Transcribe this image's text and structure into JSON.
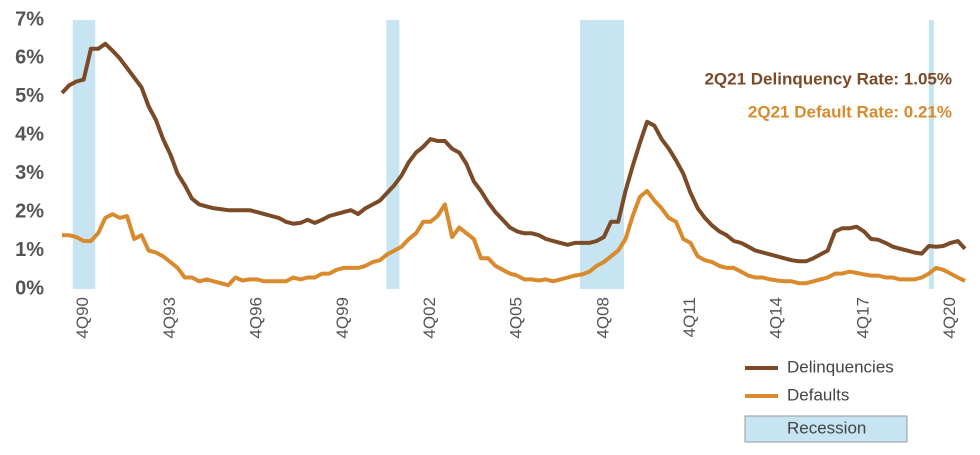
{
  "chart_data": {
    "type": "line",
    "categories": [
      null,
      null,
      null,
      "4Q90",
      null,
      null,
      null,
      null,
      null,
      null,
      null,
      null,
      null,
      null,
      null,
      "4Q93",
      null,
      null,
      null,
      null,
      null,
      null,
      null,
      null,
      null,
      null,
      null,
      "4Q96",
      null,
      null,
      null,
      null,
      null,
      null,
      null,
      null,
      null,
      null,
      null,
      "4Q99",
      null,
      null,
      null,
      null,
      null,
      null,
      null,
      null,
      null,
      null,
      null,
      "4Q02",
      null,
      null,
      null,
      null,
      null,
      null,
      null,
      null,
      null,
      null,
      null,
      "4Q05",
      null,
      null,
      null,
      null,
      null,
      null,
      null,
      null,
      null,
      null,
      null,
      "4Q08",
      null,
      null,
      null,
      null,
      null,
      null,
      null,
      null,
      null,
      null,
      null,
      "4Q11",
      null,
      null,
      null,
      null,
      null,
      null,
      null,
      null,
      null,
      null,
      null,
      "4Q14",
      null,
      null,
      null,
      null,
      null,
      null,
      null,
      null,
      null,
      null,
      null,
      "4Q17",
      null,
      null,
      null,
      null,
      null,
      null,
      null,
      null,
      null,
      null,
      null,
      "4Q20",
      null,
      null
    ],
    "series": [
      {
        "name": "Delinquencies",
        "color": "#7b4a27",
        "values": [
          5.1,
          5.3,
          5.4,
          5.45,
          6.25,
          6.25,
          6.38,
          6.2,
          6.0,
          5.75,
          5.5,
          5.25,
          4.75,
          4.4,
          3.9,
          3.5,
          3.0,
          2.7,
          2.35,
          2.2,
          2.15,
          2.1,
          2.08,
          2.05,
          2.05,
          2.05,
          2.05,
          2.0,
          1.95,
          1.9,
          1.85,
          1.75,
          1.7,
          1.72,
          1.8,
          1.72,
          1.8,
          1.9,
          1.95,
          2.0,
          2.05,
          1.95,
          2.1,
          2.2,
          2.3,
          2.5,
          2.7,
          2.95,
          3.3,
          3.55,
          3.7,
          3.9,
          3.85,
          3.85,
          3.65,
          3.55,
          3.25,
          2.8,
          2.55,
          2.25,
          2.0,
          1.8,
          1.6,
          1.5,
          1.45,
          1.45,
          1.4,
          1.3,
          1.25,
          1.2,
          1.15,
          1.2,
          1.2,
          1.2,
          1.25,
          1.35,
          1.75,
          1.75,
          2.55,
          3.2,
          3.8,
          4.35,
          4.25,
          3.9,
          3.65,
          3.35,
          3.0,
          2.5,
          2.1,
          1.85,
          1.65,
          1.5,
          1.4,
          1.25,
          1.2,
          1.1,
          1.0,
          0.95,
          0.9,
          0.85,
          0.8,
          0.75,
          0.72,
          0.72,
          0.8,
          0.9,
          1.0,
          1.5,
          1.58,
          1.58,
          1.62,
          1.5,
          1.3,
          1.28,
          1.2,
          1.1,
          1.05,
          1.0,
          0.95,
          0.92,
          1.12,
          1.1,
          1.12,
          1.2,
          1.25,
          1.05
        ]
      },
      {
        "name": "Defaults",
        "color": "#d88a2c",
        "values": [
          1.4,
          1.4,
          1.35,
          1.25,
          1.25,
          1.45,
          1.85,
          1.95,
          1.85,
          1.9,
          1.3,
          1.4,
          1.0,
          0.95,
          0.85,
          0.7,
          0.55,
          0.3,
          0.3,
          0.2,
          0.25,
          0.2,
          0.15,
          0.1,
          0.3,
          0.22,
          0.25,
          0.25,
          0.2,
          0.2,
          0.2,
          0.2,
          0.3,
          0.25,
          0.3,
          0.3,
          0.4,
          0.4,
          0.5,
          0.55,
          0.55,
          0.55,
          0.6,
          0.7,
          0.75,
          0.9,
          1.0,
          1.1,
          1.3,
          1.45,
          1.75,
          1.75,
          1.9,
          2.2,
          1.35,
          1.6,
          1.45,
          1.3,
          0.8,
          0.8,
          0.6,
          0.5,
          0.4,
          0.35,
          0.25,
          0.25,
          0.22,
          0.25,
          0.2,
          0.25,
          0.3,
          0.35,
          0.38,
          0.45,
          0.6,
          0.7,
          0.85,
          1.0,
          1.3,
          1.9,
          2.4,
          2.55,
          2.3,
          2.1,
          1.85,
          1.75,
          1.3,
          1.2,
          0.85,
          0.75,
          0.7,
          0.6,
          0.55,
          0.55,
          0.45,
          0.35,
          0.3,
          0.3,
          0.25,
          0.22,
          0.2,
          0.2,
          0.15,
          0.15,
          0.2,
          0.25,
          0.3,
          0.4,
          0.4,
          0.45,
          0.42,
          0.38,
          0.35,
          0.35,
          0.3,
          0.3,
          0.25,
          0.25,
          0.25,
          0.3,
          0.4,
          0.55,
          0.5,
          0.4,
          0.3,
          0.21
        ]
      }
    ],
    "recession_label": "Recession",
    "recession_color": "#c6e4f1",
    "recessions": [
      [
        1.5,
        4.6
      ],
      [
        44.9,
        46.7
      ],
      [
        71.7,
        77.8
      ],
      [
        120,
        120.7
      ]
    ],
    "ylim": [
      0,
      7
    ],
    "yticks": [
      {
        "value": 0,
        "label": "0%"
      },
      {
        "value": 1,
        "label": "1%"
      },
      {
        "value": 2,
        "label": "2%"
      },
      {
        "value": 3,
        "label": "3%"
      },
      {
        "value": 4,
        "label": "4%"
      },
      {
        "value": 5,
        "label": "5%"
      },
      {
        "value": 6,
        "label": "6%"
      },
      {
        "value": 7,
        "label": "7%"
      }
    ],
    "annotations": [
      "2Q21 Delinquency Rate: 1.05%",
      "2Q21 Default Rate: 0.21%"
    ]
  }
}
